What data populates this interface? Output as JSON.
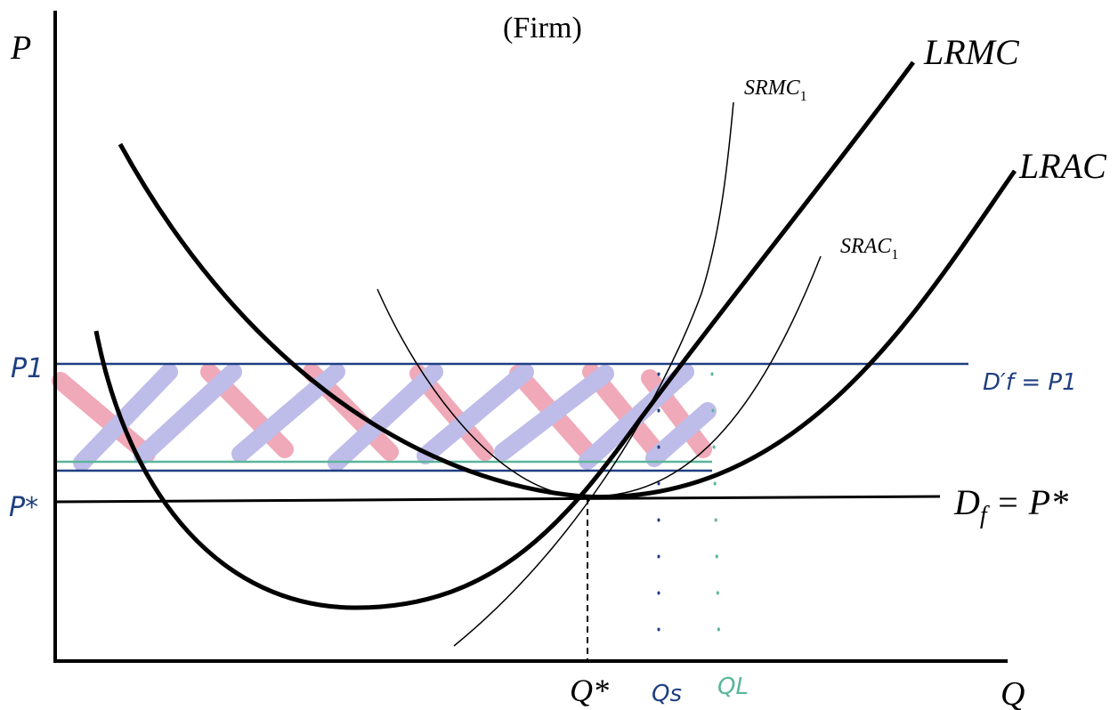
{
  "title": "(Firm)",
  "axes": {
    "y_label": "P",
    "x_label": "Q"
  },
  "curves": {
    "lrmc": "LRMC",
    "lrac": "LRAC",
    "srmc_main": "SRMC",
    "srmc_sub": "1",
    "srac_main": "SRAC",
    "srac_sub": "1"
  },
  "demand_label": {
    "d": "D",
    "sub": "f",
    "rest": " = P*"
  },
  "handwritten": {
    "p1": "P1",
    "pstar": "P*",
    "df_prime": "D′f = P1",
    "qs": "Qs",
    "ql": "QL"
  },
  "q_star": "Q*",
  "colors": {
    "curve": "#000000",
    "p1_line": "#1f3f82",
    "green_line": "#5bb59a",
    "pink_hatch": "#e4637f",
    "blue_hatch": "#8a86d8",
    "hand_blue": "#1f3f82",
    "hand_green": "#5bb59a"
  }
}
